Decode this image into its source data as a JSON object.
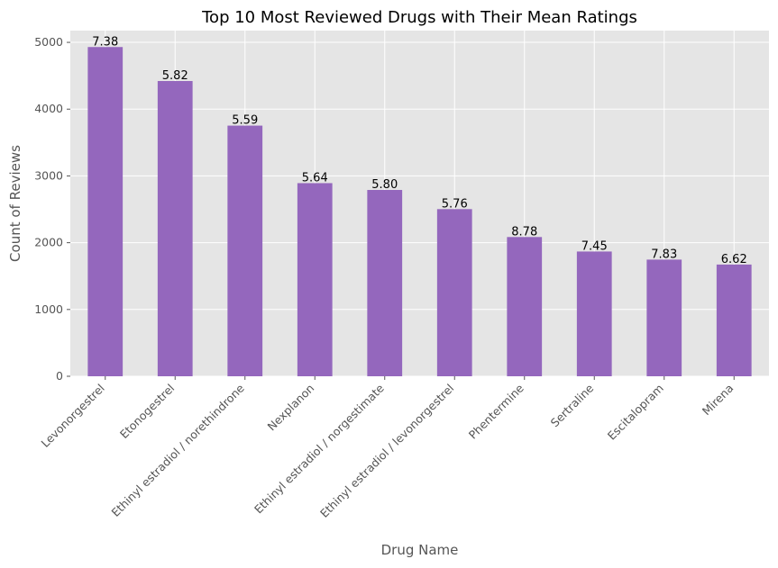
{
  "chart_data": {
    "type": "bar",
    "title": "Top 10 Most Reviewed Drugs with Their Mean Ratings",
    "xlabel": "Drug Name",
    "ylabel": "Count of Reviews",
    "categories": [
      "Levonorgestrel",
      "Etonogestrel",
      "Ethinyl estradiol / norethindrone",
      "Nexplanon",
      "Ethinyl estradiol / norgestimate",
      "Ethinyl estradiol / levonorgestrel",
      "Phentermine",
      "Sertraline",
      "Escitalopram",
      "Mirena"
    ],
    "values": [
      4930,
      4421,
      3753,
      2892,
      2790,
      2503,
      2085,
      1868,
      1747,
      1673
    ],
    "data_labels": [
      "7.38",
      "5.82",
      "5.59",
      "5.64",
      "5.80",
      "5.76",
      "8.78",
      "7.45",
      "7.83",
      "6.62"
    ],
    "yticks": [
      0,
      1000,
      2000,
      3000,
      4000,
      5000
    ],
    "ylim": [
      0,
      5176
    ],
    "grid": true,
    "bar_color": "#9467bd",
    "plot_background": "#e5e5e5",
    "grid_color": "#ffffff"
  }
}
